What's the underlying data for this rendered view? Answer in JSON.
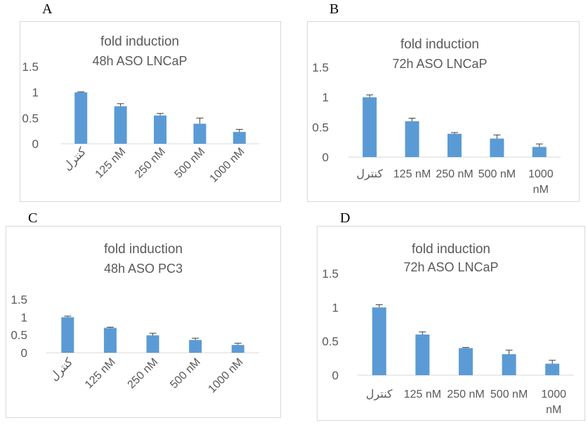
{
  "panels": [
    {
      "letter": "A"
    },
    {
      "letter": "B"
    },
    {
      "letter": "C"
    },
    {
      "letter": "D"
    }
  ],
  "chart_data": [
    {
      "type": "bar",
      "title": "fold induction",
      "subtitle": "48h ASO LNCaP",
      "categories": [
        "کنترل",
        "125 nM",
        "250 nM",
        "500 nM",
        "1000 nM"
      ],
      "values": [
        1.0,
        0.73,
        0.55,
        0.39,
        0.23
      ],
      "errors": [
        0.01,
        0.05,
        0.04,
        0.11,
        0.05
      ],
      "yticks": [
        "0",
        "0.5",
        "1",
        "1.5"
      ],
      "ylim": [
        0,
        1.5
      ],
      "color": "#5b9bd5",
      "rotated_labels": true
    },
    {
      "type": "bar",
      "title": "fold induction",
      "subtitle": "72h ASO LNCaP",
      "categories": [
        "کنترل",
        "125 nM",
        "250 nM",
        "500 nM",
        "1000 nM"
      ],
      "values": [
        1.0,
        0.6,
        0.39,
        0.31,
        0.17
      ],
      "errors": [
        0.04,
        0.05,
        0.02,
        0.06,
        0.05
      ],
      "yticks": [
        "0",
        "0.5",
        "1",
        "1.5"
      ],
      "ylim": [
        0,
        1.5
      ],
      "color": "#5b9bd5",
      "rotated_labels": false
    },
    {
      "type": "bar",
      "title": "fold induction",
      "subtitle": "48h ASO PC3",
      "categories": [
        "کنترل",
        "125 nM",
        "250 nM",
        "500 nM",
        "1000 nM"
      ],
      "values": [
        1.0,
        0.7,
        0.49,
        0.36,
        0.22
      ],
      "errors": [
        0.03,
        0.02,
        0.06,
        0.05,
        0.05
      ],
      "yticks": [
        "0",
        "0.5",
        "1",
        "1.5"
      ],
      "ylim": [
        0,
        1.5
      ],
      "color": "#5b9bd5",
      "rotated_labels": true
    },
    {
      "type": "bar",
      "title": "fold induction",
      "subtitle": "72h ASO LNCaP",
      "categories": [
        "کنترل",
        "125 nM",
        "250 nM",
        "500 nM",
        "1000 nM"
      ],
      "values": [
        1.0,
        0.6,
        0.4,
        0.31,
        0.17
      ],
      "errors": [
        0.04,
        0.04,
        0.01,
        0.06,
        0.05
      ],
      "yticks": [
        "0",
        "0.5",
        "1",
        "1.5"
      ],
      "ylim": [
        0,
        1.5
      ],
      "color": "#5b9bd5",
      "rotated_labels": false
    }
  ]
}
